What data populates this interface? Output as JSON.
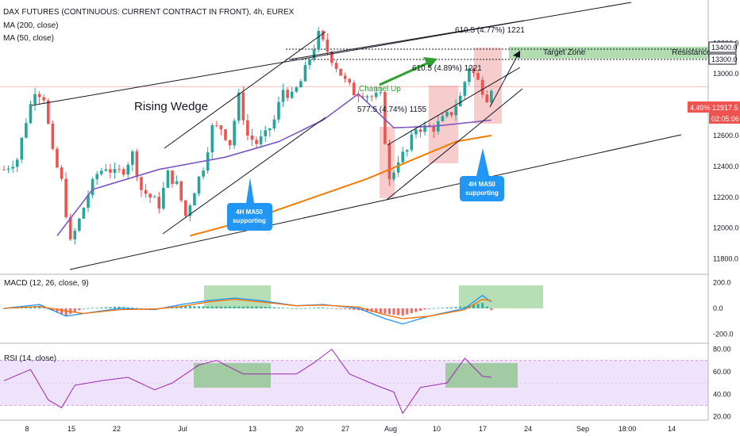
{
  "header": {
    "symbol_line": "DAX FUTURES (CONTINUOUS: CURRENT CONTRACT IN FRONT), 4h, EUREX",
    "ma200_label": "MA (200, close)",
    "ma50_label": "MA (50, close)"
  },
  "colors": {
    "candle_up": "#26a69a",
    "candle_down": "#ef5350",
    "ma50": "#7e57c2",
    "ma200": "#f57c00",
    "macd_line": "#2196f3",
    "signal_line": "#ff6d00",
    "rsi_line": "#9c27b0",
    "rsi_band": "#efe3fb",
    "highlight_red": "#f4b6b6",
    "highlight_green": "#9ed49e",
    "bubble": "#2196f3",
    "arrow_green": "#2fa02f"
  },
  "price_pane": {
    "annotations": {
      "rising_wedge": "Rising Wedge",
      "channel_up": "Channel Up",
      "target_zone": "Target Zone",
      "resistance": "Resistance",
      "measure_1": "577.5 (4.74%) 1155",
      "measure_2": "610.5 (4.89%) 1221",
      "measure_3": "610.5 (4.77%) 1221",
      "bubble_1_line1": "4H MA50",
      "bubble_1_line2": "supporting",
      "bubble_2_line1": "4H MA50",
      "bubble_2_line2": "supporting"
    },
    "y_ticks": [
      "13600.0",
      "13400.0",
      "13300.0",
      "13200.0",
      "13000.0",
      "12800.0",
      "12600.0",
      "12400.0",
      "12200.0",
      "12000.0",
      "11800.0"
    ],
    "price_tag": "12917.5",
    "pct_tag": "4.49%",
    "countdown_tag": "02:05:06"
  },
  "macd_pane": {
    "label": "MACD (12, 26, close, 9)",
    "y_ticks": [
      "200.0",
      "0.0",
      "-200.0"
    ]
  },
  "rsi_pane": {
    "label": "RSI (14, close)",
    "y_ticks": [
      "80.00",
      "60.00",
      "40.00",
      "20.00"
    ]
  },
  "x_axis": {
    "ticks": [
      "8",
      "15",
      "22",
      "Jul",
      "13",
      "20",
      "27",
      "Aug",
      "10",
      "17",
      "24",
      "Sep",
      "18:00",
      "14"
    ]
  },
  "chart_data": {
    "type": "candlestick",
    "title": "DAX FUTURES (CONTINUOUS: CURRENT CONTRACT IN FRONT), 4h, EUREX",
    "timeframe": "4h",
    "ylim": [
      11700,
      13700
    ],
    "last_price": 12917.5,
    "levels": {
      "resistance": [
        13300,
        13400
      ]
    },
    "x_tick_labels": [
      "8",
      "15",
      "22",
      "Jul",
      "13",
      "20",
      "27",
      "Aug",
      "10",
      "17",
      "24",
      "Sep",
      "18:00",
      "14"
    ],
    "close_path": [
      [
        0,
        12380
      ],
      [
        3,
        12450
      ],
      [
        5,
        12700
      ],
      [
        7,
        12900
      ],
      [
        9,
        12850
      ],
      [
        11,
        12480
      ],
      [
        13,
        12300
      ],
      [
        15,
        11900
      ],
      [
        17,
        12050
      ],
      [
        19,
        12220
      ],
      [
        21,
        12350
      ],
      [
        23,
        12400
      ],
      [
        25,
        12350
      ],
      [
        27,
        12380
      ],
      [
        29,
        12480
      ],
      [
        31,
        12250
      ],
      [
        33,
        12200
      ],
      [
        35,
        12150
      ],
      [
        37,
        12350
      ],
      [
        39,
        12280
      ],
      [
        41,
        12080
      ],
      [
        43,
        12250
      ],
      [
        45,
        12400
      ],
      [
        47,
        12650
      ],
      [
        49,
        12650
      ],
      [
        51,
        12550
      ],
      [
        53,
        12850
      ],
      [
        55,
        12600
      ],
      [
        57,
        12550
      ],
      [
        59,
        12600
      ],
      [
        61,
        12700
      ],
      [
        63,
        12900
      ],
      [
        65,
        12850
      ],
      [
        67,
        12950
      ],
      [
        69,
        13100
      ],
      [
        71,
        13250
      ],
      [
        73,
        13150
      ],
      [
        75,
        13050
      ],
      [
        77,
        12950
      ],
      [
        79,
        12880
      ],
      [
        81,
        12880
      ],
      [
        83,
        12850
      ],
      [
        85,
        12850
      ],
      [
        87,
        12300
      ],
      [
        89,
        12450
      ],
      [
        91,
        12500
      ],
      [
        93,
        12650
      ],
      [
        95,
        12650
      ],
      [
        97,
        12650
      ],
      [
        99,
        12700
      ],
      [
        101,
        12750
      ],
      [
        103,
        12850
      ],
      [
        105,
        13050
      ],
      [
        107,
        12950
      ],
      [
        109,
        12850
      ],
      [
        110,
        12917.5
      ]
    ],
    "series": [
      {
        "name": "MA (200, close)",
        "values": [
          [
            42,
            11950
          ],
          [
            55,
            12050
          ],
          [
            70,
            12200
          ],
          [
            82,
            12320
          ],
          [
            92,
            12440
          ],
          [
            102,
            12560
          ],
          [
            110,
            12600
          ]
        ]
      },
      {
        "name": "MA (50, close)",
        "values": [
          [
            12,
            11950
          ],
          [
            20,
            12250
          ],
          [
            35,
            12380
          ],
          [
            50,
            12460
          ],
          [
            62,
            12560
          ],
          [
            72,
            12700
          ],
          [
            80,
            12870
          ],
          [
            88,
            12650
          ],
          [
            97,
            12660
          ],
          [
            110,
            12700
          ]
        ]
      }
    ],
    "macd": {
      "name": "MACD (12, 26, close, 9)",
      "ylim": [
        -260,
        230
      ],
      "macd_line": [
        [
          0,
          0
        ],
        [
          8,
          30
        ],
        [
          14,
          -60
        ],
        [
          18,
          -40
        ],
        [
          26,
          0
        ],
        [
          34,
          -10
        ],
        [
          40,
          30
        ],
        [
          46,
          60
        ],
        [
          52,
          80
        ],
        [
          58,
          60
        ],
        [
          66,
          20
        ],
        [
          72,
          30
        ],
        [
          80,
          0
        ],
        [
          86,
          -80
        ],
        [
          90,
          -120
        ],
        [
          96,
          -60
        ],
        [
          104,
          0
        ],
        [
          108,
          100
        ],
        [
          110,
          50
        ]
      ],
      "signal_line": [
        [
          0,
          0
        ],
        [
          8,
          15
        ],
        [
          14,
          -20
        ],
        [
          18,
          -40
        ],
        [
          26,
          -10
        ],
        [
          34,
          -5
        ],
        [
          40,
          15
        ],
        [
          46,
          50
        ],
        [
          52,
          70
        ],
        [
          58,
          50
        ],
        [
          66,
          20
        ],
        [
          72,
          25
        ],
        [
          80,
          10
        ],
        [
          86,
          -50
        ],
        [
          90,
          -80
        ],
        [
          96,
          -60
        ],
        [
          104,
          -10
        ],
        [
          108,
          70
        ],
        [
          110,
          60
        ]
      ]
    },
    "rsi": {
      "name": "RSI (14, close)",
      "ylim": [
        17,
        85
      ],
      "band": [
        30,
        70
      ],
      "values": [
        [
          0,
          52
        ],
        [
          6,
          62
        ],
        [
          10,
          35
        ],
        [
          13,
          28
        ],
        [
          16,
          48
        ],
        [
          22,
          52
        ],
        [
          28,
          55
        ],
        [
          34,
          44
        ],
        [
          38,
          50
        ],
        [
          44,
          66
        ],
        [
          48,
          70
        ],
        [
          54,
          58
        ],
        [
          60,
          58
        ],
        [
          66,
          58
        ],
        [
          70,
          68
        ],
        [
          74,
          80
        ],
        [
          78,
          58
        ],
        [
          84,
          48
        ],
        [
          88,
          42
        ],
        [
          90,
          23
        ],
        [
          94,
          46
        ],
        [
          100,
          50
        ],
        [
          104,
          72
        ],
        [
          108,
          56
        ],
        [
          110,
          55
        ]
      ]
    }
  }
}
